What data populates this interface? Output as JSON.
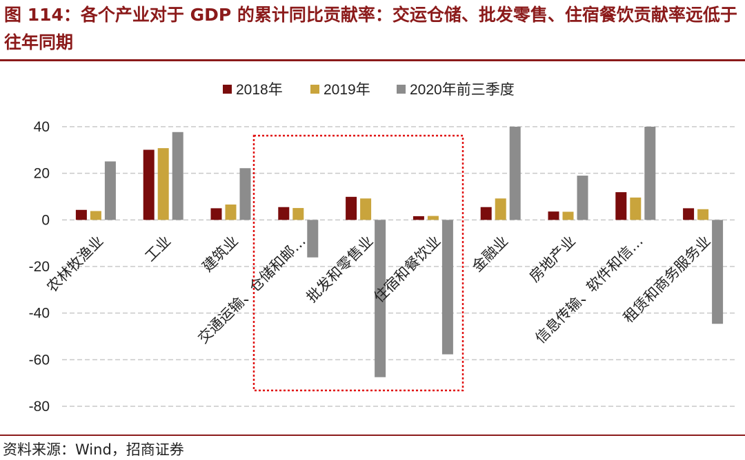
{
  "title": "图 114：各个产业对于 GDP 的累计同比贡献率：交运仓储、批发零售、住宿餐饮贡献率远低于往年同期",
  "source": "资料来源：Wind，招商证券",
  "colors": {
    "title": "#8b1a1a",
    "series": [
      "#7a0c0c",
      "#c9a43c",
      "#8c8c8c"
    ],
    "grid": "#c8c8c8",
    "highlight": "#e01010"
  },
  "chart_data": {
    "type": "bar",
    "title": "",
    "xlabel": "",
    "ylabel": "",
    "ylim": [
      -80,
      40
    ],
    "yticks": [
      40,
      20,
      0,
      -20,
      -40,
      -60,
      -80
    ],
    "grid": true,
    "legend_position": "top-center",
    "categories": [
      "农林牧渔业",
      "工业",
      "建筑业",
      "交通运输、仓储和邮…",
      "批发和零售业",
      "住宿和餐饮业",
      "金融业",
      "房地产业",
      "信息传输、软件和信…",
      "租赁和商务服务业"
    ],
    "series": [
      {
        "name": "2018年",
        "values": [
          4.3,
          30.1,
          5.0,
          5.5,
          9.9,
          1.6,
          5.5,
          3.6,
          11.9,
          5.0
        ]
      },
      {
        "name": "2019年",
        "values": [
          3.8,
          30.8,
          6.6,
          5.1,
          9.2,
          1.7,
          9.2,
          3.5,
          9.6,
          4.6
        ]
      },
      {
        "name": "2020年前三季度",
        "values": [
          25.1,
          37.7,
          22.2,
          -16.1,
          -67.5,
          -57.7,
          40.0,
          19.0,
          40.0,
          -44.6
        ]
      }
    ],
    "annotation": "highlight box around 交通运输、仓储和邮… / 批发和零售业 / 住宿和餐饮业"
  }
}
